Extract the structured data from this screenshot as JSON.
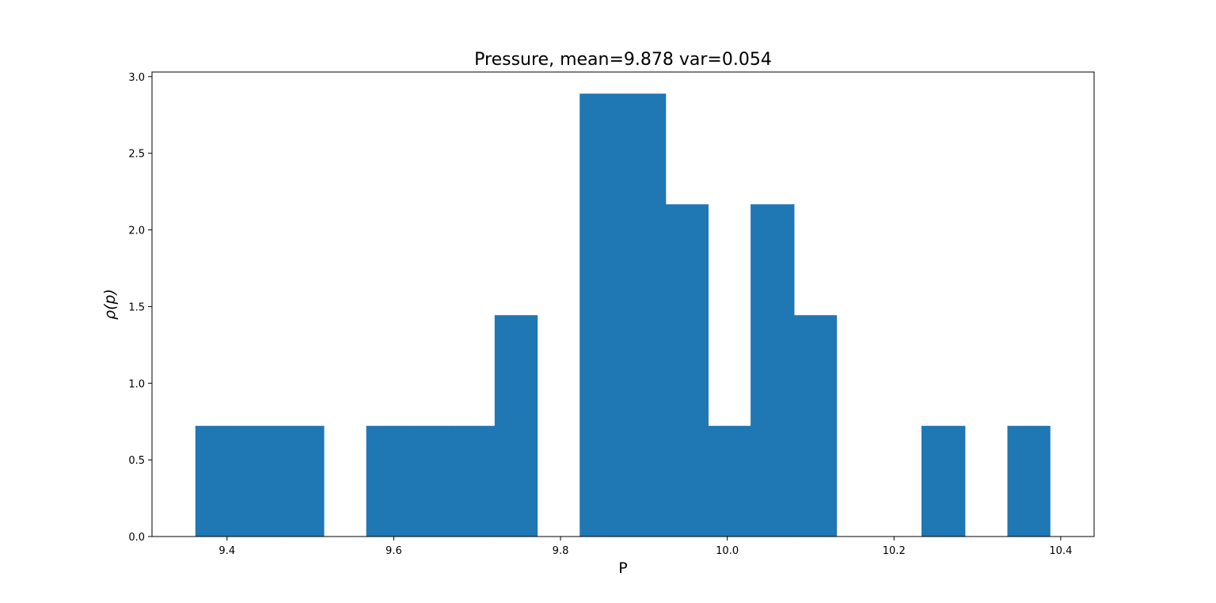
{
  "chart_data": {
    "type": "bar",
    "title": "Pressure, mean=9.878 var=0.054",
    "xlabel": "P",
    "ylabel": "ρ(p)",
    "xlim": [
      9.31,
      10.44
    ],
    "ylim": [
      0,
      3.03
    ],
    "xticks": [
      9.4,
      9.6,
      9.8,
      10.0,
      10.2,
      10.4
    ],
    "xtick_labels": [
      "9.4",
      "9.6",
      "9.8",
      "10.0",
      "10.2",
      "10.4"
    ],
    "yticks": [
      0.0,
      0.5,
      1.0,
      1.5,
      2.0,
      2.5,
      3.0
    ],
    "ytick_labels": [
      "0.0",
      "0.5",
      "1.0",
      "1.5",
      "2.0",
      "2.5",
      "3.0"
    ],
    "bin_edges": [
      9.362,
      9.413,
      9.465,
      9.516,
      9.567,
      9.618,
      9.67,
      9.721,
      9.772,
      9.823,
      9.875,
      9.926,
      9.977,
      10.028,
      10.08,
      10.131,
      10.182,
      10.233,
      10.285,
      10.336,
      10.387
    ],
    "values": [
      0.722,
      0.722,
      0.722,
      0,
      0.722,
      0.722,
      0.722,
      1.444,
      0,
      2.889,
      2.889,
      2.167,
      0.722,
      2.167,
      1.444,
      0,
      0,
      0.722,
      0,
      0.722
    ],
    "grid": false,
    "colors": {
      "bar": "#1f77b4",
      "axes": "#000000",
      "background": "#ffffff"
    }
  }
}
